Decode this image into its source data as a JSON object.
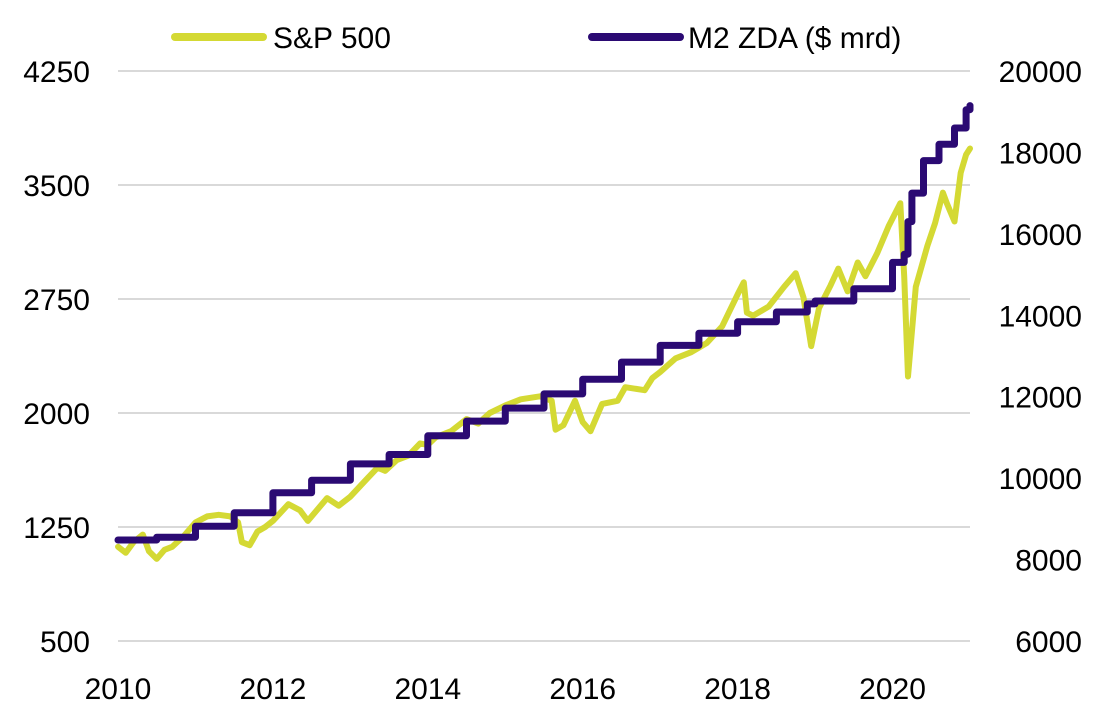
{
  "chart_data": {
    "type": "line",
    "title": "",
    "xlabel": "",
    "ylabel": "",
    "y2label": "",
    "x_range": [
      2010,
      2021
    ],
    "x_ticks": [
      "2010",
      "2012",
      "2014",
      "2016",
      "2018",
      "2020"
    ],
    "y_left_range": [
      500,
      4250
    ],
    "y_left_ticks": [
      "500",
      "1250",
      "2000",
      "2750",
      "3500",
      "4250"
    ],
    "y_right_range": [
      6000,
      20000
    ],
    "y_right_ticks": [
      "6000",
      "8000",
      "10000",
      "12000",
      "14000",
      "16000",
      "18000",
      "20000"
    ],
    "grid": true,
    "legend_position": "top",
    "series": [
      {
        "name": "S&P 500",
        "axis": "left",
        "color": "#d4d934",
        "points": [
          [
            2010.0,
            1120
          ],
          [
            2010.1,
            1080
          ],
          [
            2010.2,
            1150
          ],
          [
            2010.32,
            1200
          ],
          [
            2010.4,
            1090
          ],
          [
            2010.5,
            1040
          ],
          [
            2010.6,
            1100
          ],
          [
            2010.7,
            1120
          ],
          [
            2010.85,
            1190
          ],
          [
            2011.0,
            1280
          ],
          [
            2011.15,
            1320
          ],
          [
            2011.3,
            1330
          ],
          [
            2011.45,
            1320
          ],
          [
            2011.55,
            1280
          ],
          [
            2011.6,
            1150
          ],
          [
            2011.7,
            1130
          ],
          [
            2011.8,
            1220
          ],
          [
            2011.9,
            1250
          ],
          [
            2012.0,
            1290
          ],
          [
            2012.2,
            1400
          ],
          [
            2012.35,
            1360
          ],
          [
            2012.45,
            1290
          ],
          [
            2012.6,
            1380
          ],
          [
            2012.7,
            1440
          ],
          [
            2012.85,
            1390
          ],
          [
            2013.0,
            1450
          ],
          [
            2013.2,
            1560
          ],
          [
            2013.35,
            1640
          ],
          [
            2013.45,
            1620
          ],
          [
            2013.6,
            1690
          ],
          [
            2013.75,
            1720
          ],
          [
            2013.9,
            1800
          ],
          [
            2014.0,
            1790
          ],
          [
            2014.1,
            1840
          ],
          [
            2014.3,
            1880
          ],
          [
            2014.5,
            1960
          ],
          [
            2014.65,
            1930
          ],
          [
            2014.8,
            2000
          ],
          [
            2015.0,
            2050
          ],
          [
            2015.2,
            2090
          ],
          [
            2015.45,
            2110
          ],
          [
            2015.6,
            2080
          ],
          [
            2015.65,
            1890
          ],
          [
            2015.75,
            1920
          ],
          [
            2015.9,
            2080
          ],
          [
            2016.0,
            1940
          ],
          [
            2016.1,
            1880
          ],
          [
            2016.25,
            2060
          ],
          [
            2016.45,
            2080
          ],
          [
            2016.55,
            2170
          ],
          [
            2016.8,
            2150
          ],
          [
            2016.9,
            2230
          ],
          [
            2017.0,
            2270
          ],
          [
            2017.2,
            2360
          ],
          [
            2017.4,
            2400
          ],
          [
            2017.6,
            2460
          ],
          [
            2017.8,
            2570
          ],
          [
            2018.0,
            2780
          ],
          [
            2018.08,
            2860
          ],
          [
            2018.12,
            2660
          ],
          [
            2018.2,
            2640
          ],
          [
            2018.4,
            2700
          ],
          [
            2018.6,
            2830
          ],
          [
            2018.75,
            2920
          ],
          [
            2018.85,
            2760
          ],
          [
            2018.95,
            2440
          ],
          [
            2019.05,
            2690
          ],
          [
            2019.2,
            2840
          ],
          [
            2019.3,
            2950
          ],
          [
            2019.42,
            2800
          ],
          [
            2019.55,
            2990
          ],
          [
            2019.65,
            2900
          ],
          [
            2019.8,
            3050
          ],
          [
            2019.95,
            3230
          ],
          [
            2020.1,
            3380
          ],
          [
            2020.15,
            2900
          ],
          [
            2020.2,
            2240
          ],
          [
            2020.3,
            2830
          ],
          [
            2020.45,
            3100
          ],
          [
            2020.55,
            3250
          ],
          [
            2020.65,
            3450
          ],
          [
            2020.7,
            3380
          ],
          [
            2020.8,
            3260
          ],
          [
            2020.88,
            3580
          ],
          [
            2020.95,
            3700
          ],
          [
            2021.0,
            3740
          ]
        ]
      },
      {
        "name": "M2 ZDA ($ mrd)",
        "axis": "right",
        "color": "#2b0a73",
        "points": [
          [
            2010.0,
            8480
          ],
          [
            2010.5,
            8550
          ],
          [
            2011.0,
            8820
          ],
          [
            2011.5,
            9150
          ],
          [
            2012.0,
            9640
          ],
          [
            2012.5,
            9950
          ],
          [
            2013.0,
            10350
          ],
          [
            2013.5,
            10580
          ],
          [
            2014.0,
            11040
          ],
          [
            2014.5,
            11400
          ],
          [
            2015.0,
            11720
          ],
          [
            2015.5,
            12070
          ],
          [
            2016.0,
            12430
          ],
          [
            2016.5,
            12850
          ],
          [
            2017.0,
            13260
          ],
          [
            2017.5,
            13560
          ],
          [
            2018.0,
            13840
          ],
          [
            2018.5,
            14080
          ],
          [
            2018.9,
            14280
          ],
          [
            2019.0,
            14350
          ],
          [
            2019.5,
            14650
          ],
          [
            2020.0,
            15300
          ],
          [
            2020.15,
            15500
          ],
          [
            2020.2,
            16300
          ],
          [
            2020.25,
            17000
          ],
          [
            2020.4,
            17800
          ],
          [
            2020.6,
            18200
          ],
          [
            2020.8,
            18600
          ],
          [
            2020.95,
            19050
          ],
          [
            2021.0,
            19150
          ]
        ]
      }
    ]
  }
}
